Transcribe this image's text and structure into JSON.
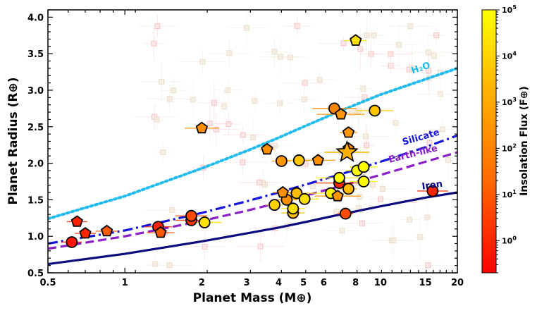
{
  "chart_data": {
    "type": "scatter",
    "xlabel": "Planet Mass (M⊕)",
    "ylabel": "Planet Radius (R⊕)",
    "x_scale": "log",
    "xlim": [
      0.5,
      20
    ],
    "ylim": [
      0.5,
      4.1
    ],
    "x_ticks": [
      0.5,
      1,
      2,
      3,
      4,
      5,
      6,
      8,
      10,
      15,
      20
    ],
    "y_ticks": [
      0.5,
      1.0,
      1.5,
      2.0,
      2.5,
      3.0,
      3.5,
      4.0
    ],
    "y_tick_labels": [
      "0.5",
      "1.0",
      "1.5",
      "2.0",
      "2.5",
      "3.0",
      "3.5",
      "4.0"
    ],
    "grid": false,
    "colorbar": {
      "label": "Insolation Flux (F⊕)",
      "scale": "log",
      "range": [
        0.2,
        100000
      ],
      "ticks": [
        1,
        10,
        100,
        1000,
        10000,
        100000
      ],
      "tick_labels": [
        "10^0",
        "10^1",
        "10^2",
        "10^3",
        "10^4",
        "10^5"
      ],
      "colors": [
        "#ff0000",
        "#ff7700",
        "#ffbb00",
        "#ffff00"
      ]
    },
    "models": [
      {
        "name": "H₂O",
        "color": "#22bbee",
        "style": "dotted",
        "x": [
          0.5,
          1,
          2,
          3,
          4,
          5,
          7,
          10,
          15,
          20
        ],
        "y": [
          1.24,
          1.55,
          1.93,
          2.17,
          2.35,
          2.5,
          2.72,
          2.94,
          3.15,
          3.3
        ]
      },
      {
        "name": "Silicate",
        "color": "#1414dd",
        "style": "dashdot",
        "x": [
          0.5,
          1,
          2,
          3,
          4,
          5,
          7,
          10,
          15,
          20
        ],
        "y": [
          0.9,
          1.08,
          1.32,
          1.48,
          1.6,
          1.7,
          1.85,
          2.02,
          2.22,
          2.38
        ]
      },
      {
        "name": "Earth-like",
        "color": "#8a1ec8",
        "style": "dashed",
        "x": [
          0.5,
          1,
          2,
          3,
          4,
          5,
          7,
          10,
          15,
          20
        ],
        "y": [
          0.83,
          1.0,
          1.21,
          1.35,
          1.46,
          1.55,
          1.69,
          1.84,
          2.02,
          2.15
        ]
      },
      {
        "name": "Iron",
        "color": "#0c0c80",
        "style": "solid",
        "x": [
          0.5,
          1,
          2,
          3,
          4,
          5,
          7,
          10,
          15,
          20
        ],
        "y": [
          0.62,
          0.76,
          0.93,
          1.04,
          1.12,
          1.19,
          1.3,
          1.41,
          1.53,
          1.6
        ]
      }
    ],
    "highlight_planet": {
      "x": 7.4,
      "y": 2.15,
      "flux": 1500,
      "marker": "star"
    },
    "planets_circle": [
      {
        "x": 0.62,
        "y": 0.92,
        "flux": 0.5
      },
      {
        "x": 1.35,
        "y": 1.13,
        "flux": 0.8
      },
      {
        "x": 1.82,
        "y": 1.22,
        "flux": 2
      },
      {
        "x": 1.82,
        "y": 1.28,
        "flux": 5
      },
      {
        "x": 2.05,
        "y": 1.19,
        "flux": 20000
      },
      {
        "x": 3.85,
        "y": 1.43,
        "flux": 10000
      },
      {
        "x": 4.3,
        "y": 1.5,
        "flux": 200
      },
      {
        "x": 4.55,
        "y": 1.32,
        "flux": 3000
      },
      {
        "x": 4.55,
        "y": 1.38,
        "flux": 20000
      },
      {
        "x": 4.7,
        "y": 1.59,
        "flux": 3000
      },
      {
        "x": 5.05,
        "y": 1.51,
        "flux": 20000
      },
      {
        "x": 4.1,
        "y": 2.03,
        "flux": 300
      },
      {
        "x": 4.8,
        "y": 2.04,
        "flux": 5000
      },
      {
        "x": 6.4,
        "y": 1.59,
        "flux": 50000
      },
      {
        "x": 6.9,
        "y": 1.73,
        "flux": 1
      },
      {
        "x": 6.9,
        "y": 1.8,
        "flux": 80000
      },
      {
        "x": 7.3,
        "y": 1.31,
        "flux": 5
      },
      {
        "x": 7.5,
        "y": 1.65,
        "flux": 3000
      },
      {
        "x": 8.1,
        "y": 1.9,
        "flux": 80000
      },
      {
        "x": 8.6,
        "y": 1.95,
        "flux": 80000
      },
      {
        "x": 8.6,
        "y": 1.75,
        "flux": 80000
      },
      {
        "x": 6.6,
        "y": 2.75,
        "flux": 100
      },
      {
        "x": 9.5,
        "y": 2.72,
        "flux": 5000
      },
      {
        "x": 16.0,
        "y": 1.62,
        "flux": 1
      }
    ],
    "planets_pentagon": [
      {
        "x": 0.65,
        "y": 1.2,
        "flux": 0.8
      },
      {
        "x": 0.7,
        "y": 1.04,
        "flux": 1
      },
      {
        "x": 0.85,
        "y": 1.07,
        "flux": 10
      },
      {
        "x": 1.38,
        "y": 1.05,
        "flux": 10
      },
      {
        "x": 2.0,
        "y": 2.48,
        "flux": 200
      },
      {
        "x": 3.6,
        "y": 2.19,
        "flux": 200
      },
      {
        "x": 4.15,
        "y": 1.6,
        "flux": 200
      },
      {
        "x": 5.7,
        "y": 2.04,
        "flux": 200
      },
      {
        "x": 7.0,
        "y": 2.67,
        "flux": 300
      },
      {
        "x": 7.5,
        "y": 2.42,
        "flux": 300
      },
      {
        "x": 7.5,
        "y": 2.2,
        "flux": 300
      },
      {
        "x": 6.8,
        "y": 1.55,
        "flux": 300
      },
      {
        "x": 8.0,
        "y": 3.68,
        "flux": 20000
      }
    ]
  }
}
